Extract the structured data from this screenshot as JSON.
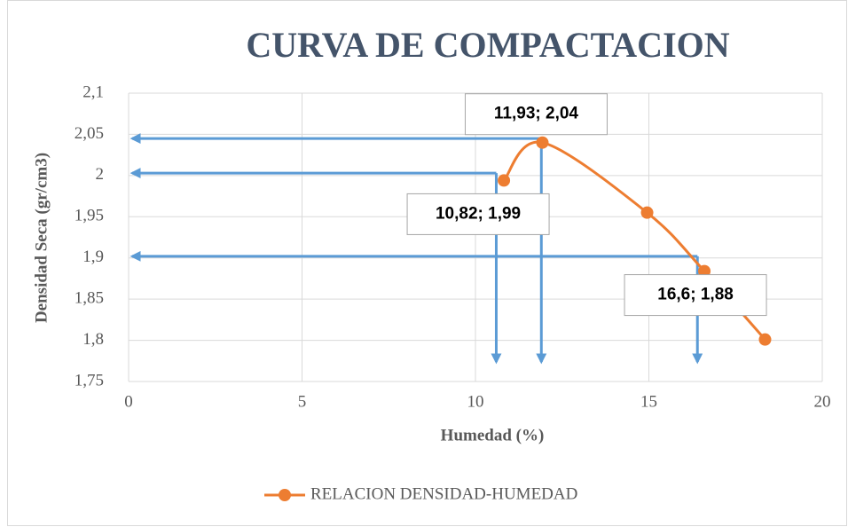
{
  "chart_data": {
    "type": "line",
    "title": "CURVA DE COMPACTACION",
    "x_label": "Humedad (%)",
    "y_label": "Densidad Seca (gr/cm3)",
    "series": [
      {
        "name": "RELACION DENSIDAD-HUMEDAD",
        "color": "#ed7d31",
        "x": [
          10.82,
          11.93,
          14.95,
          16.6,
          18.35
        ],
        "values": [
          1.994,
          2.04,
          1.955,
          1.884,
          1.801
        ],
        "value_labels": [
          "10,82; 1,99",
          "11,93; 2,04",
          null,
          "16,6; 1,88",
          null
        ]
      }
    ],
    "guides": {
      "color": "#5b9bd5",
      "x": [
        10.6,
        11.9,
        16.4
      ],
      "y": [
        2.003,
        2.045,
        1.902
      ]
    },
    "xlim": [
      0,
      20
    ],
    "xticks": [
      0,
      5,
      10,
      15,
      20
    ],
    "ylim": [
      1.75,
      2.1
    ],
    "yticks": [
      {
        "value": 1.75,
        "label": "1,75"
      },
      {
        "value": 1.8,
        "label": "1,8"
      },
      {
        "value": 1.85,
        "label": "1,85"
      },
      {
        "value": 1.9,
        "label": "1,9"
      },
      {
        "value": 1.95,
        "label": "1,95"
      },
      {
        "value": 2,
        "label": "2"
      },
      {
        "value": 2.05,
        "label": "2,05"
      },
      {
        "value": 2.1,
        "label": "2,1"
      }
    ],
    "grid": true,
    "legend": "bottom"
  }
}
